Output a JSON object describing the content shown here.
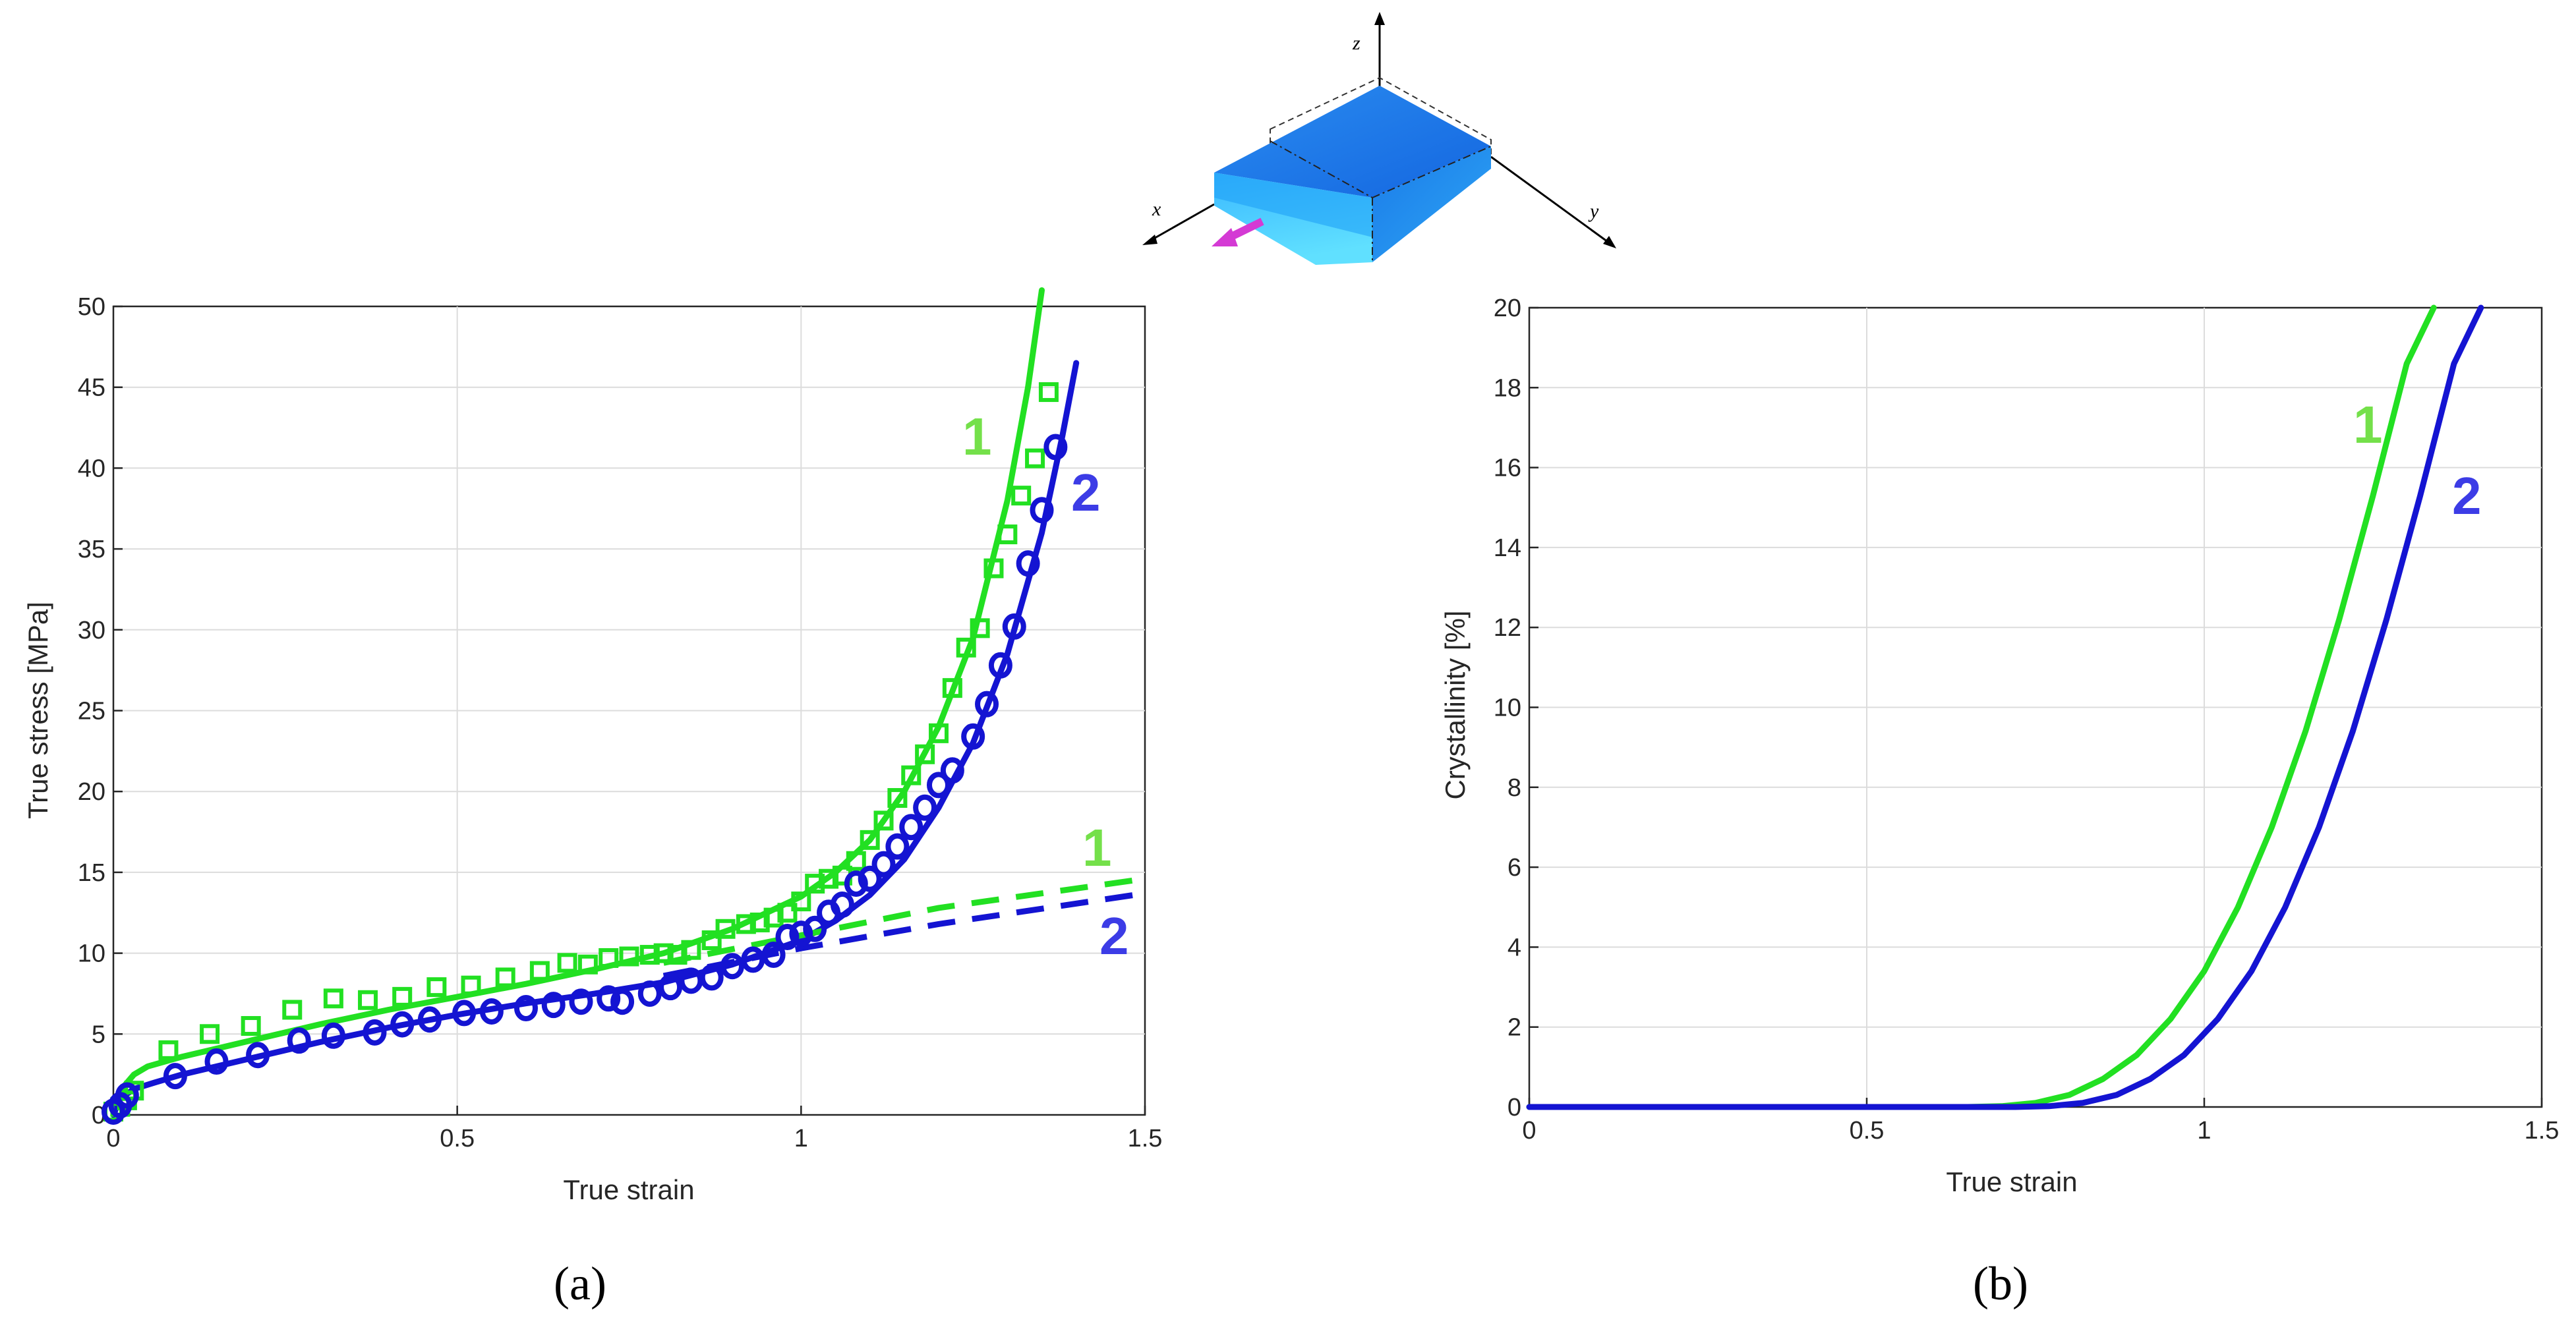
{
  "chart_data": [
    {
      "type": "line",
      "panel_label": "(a)",
      "xlabel": "True strain",
      "ylabel": "True stress [MPa]",
      "xlim": [
        0,
        1.5
      ],
      "ylim": [
        0,
        50
      ],
      "xticks": [
        "0",
        "0.5",
        "1",
        "1.5"
      ],
      "yticks": [
        "0",
        "5",
        "10",
        "15",
        "20",
        "25",
        "30",
        "35",
        "40",
        "45",
        "50"
      ],
      "grid": true,
      "series": [
        {
          "name": "1",
          "color": "#22e022",
          "style": "solid",
          "x": [
            0,
            0.01,
            0.03,
            0.05,
            0.1,
            0.2,
            0.3,
            0.4,
            0.5,
            0.6,
            0.7,
            0.8,
            0.9,
            1.0,
            1.05,
            1.1,
            1.15,
            1.2,
            1.25,
            1.3,
            1.33,
            1.35
          ],
          "y": [
            0,
            1.5,
            2.5,
            3.0,
            3.6,
            4.6,
            5.6,
            6.5,
            7.3,
            8.1,
            9.0,
            10.0,
            11.5,
            13.5,
            15.0,
            17.0,
            20.0,
            24.0,
            29.5,
            38.0,
            45.0,
            51.0
          ]
        },
        {
          "name": "2",
          "color": "#1414d2",
          "style": "solid",
          "x": [
            0,
            0.01,
            0.03,
            0.06,
            0.1,
            0.2,
            0.3,
            0.4,
            0.5,
            0.6,
            0.7,
            0.8,
            0.9,
            1.0,
            1.05,
            1.1,
            1.15,
            1.2,
            1.25,
            1.3,
            1.35,
            1.38,
            1.4
          ],
          "y": [
            0,
            1.0,
            1.6,
            2.0,
            2.5,
            3.5,
            4.5,
            5.4,
            6.2,
            6.9,
            7.5,
            8.2,
            9.3,
            10.8,
            12.0,
            13.6,
            15.8,
            19.0,
            23.0,
            28.5,
            36.0,
            42.0,
            46.5
          ]
        },
        {
          "name": "1",
          "color": "#22e022",
          "style": "dashed",
          "x": [
            0.8,
            1.0,
            1.2,
            1.5
          ],
          "y": [
            9.4,
            11.1,
            12.8,
            14.6
          ]
        },
        {
          "name": "2",
          "color": "#1414d2",
          "style": "dashed",
          "x": [
            0.8,
            1.0,
            1.2,
            1.5
          ],
          "y": [
            8.6,
            10.3,
            11.8,
            13.7
          ]
        }
      ],
      "markers": [
        {
          "name": "1",
          "shape": "square",
          "color": "#22e022",
          "x": [
            0.0,
            0.01,
            0.02,
            0.03,
            0.08,
            0.14,
            0.2,
            0.26,
            0.32,
            0.37,
            0.42,
            0.47,
            0.52,
            0.57,
            0.62,
            0.66,
            0.69,
            0.72,
            0.75,
            0.78,
            0.8,
            0.82,
            0.84,
            0.87,
            0.89,
            0.92,
            0.94,
            0.96,
            0.98,
            1.0,
            1.02,
            1.04,
            1.06,
            1.08,
            1.1,
            1.12,
            1.14,
            1.16,
            1.18,
            1.2,
            1.22,
            1.24,
            1.26,
            1.28,
            1.3,
            1.32,
            1.34,
            1.36
          ],
          "y": [
            0.2,
            0.5,
            0.9,
            1.5,
            4.0,
            5.0,
            5.5,
            6.5,
            7.2,
            7.1,
            7.3,
            7.9,
            8.0,
            8.5,
            8.9,
            9.4,
            9.3,
            9.7,
            9.8,
            9.9,
            10.0,
            9.9,
            10.2,
            10.8,
            11.5,
            11.8,
            11.9,
            12.2,
            12.5,
            13.2,
            14.3,
            14.6,
            14.8,
            15.7,
            17.0,
            18.2,
            19.6,
            21.0,
            22.3,
            23.6,
            26.4,
            28.9,
            30.1,
            33.8,
            35.9,
            38.3,
            40.6,
            44.7
          ]
        },
        {
          "name": "2",
          "shape": "circle",
          "color": "#1414d2",
          "x": [
            0.0,
            0.01,
            0.02,
            0.09,
            0.15,
            0.21,
            0.27,
            0.32,
            0.38,
            0.42,
            0.46,
            0.51,
            0.55,
            0.6,
            0.64,
            0.68,
            0.72,
            0.74,
            0.78,
            0.81,
            0.84,
            0.87,
            0.9,
            0.93,
            0.96,
            0.98,
            1.0,
            1.02,
            1.04,
            1.06,
            1.08,
            1.1,
            1.12,
            1.14,
            1.16,
            1.18,
            1.2,
            1.22,
            1.25,
            1.27,
            1.29,
            1.31,
            1.33,
            1.35,
            1.37
          ],
          "y": [
            0.2,
            0.6,
            1.2,
            2.4,
            3.3,
            3.7,
            4.6,
            4.9,
            5.1,
            5.6,
            5.9,
            6.3,
            6.4,
            6.6,
            6.8,
            7.0,
            7.2,
            7.0,
            7.5,
            7.9,
            8.3,
            8.5,
            9.2,
            9.6,
            9.9,
            11.0,
            11.2,
            11.5,
            12.5,
            13.0,
            14.3,
            14.6,
            15.5,
            16.6,
            17.8,
            19.0,
            20.4,
            21.3,
            23.4,
            25.4,
            27.8,
            30.2,
            34.1,
            37.4,
            41.3
          ]
        }
      ],
      "annotations": [
        {
          "text": "1",
          "color": "#74e04a"
        },
        {
          "text": "2",
          "color": "#3c3ce6"
        },
        {
          "text": "1",
          "color": "#74e04a"
        },
        {
          "text": "2",
          "color": "#3c3ce6"
        }
      ]
    },
    {
      "type": "line",
      "panel_label": "(b)",
      "xlabel": "True strain",
      "ylabel": "Crystallinity [%]",
      "xlim": [
        0,
        1.5
      ],
      "ylim": [
        0,
        20
      ],
      "xticks": [
        "0",
        "0.5",
        "1",
        "1.5"
      ],
      "yticks": [
        "0",
        "2",
        "4",
        "6",
        "8",
        "10",
        "12",
        "14",
        "16",
        "18",
        "20"
      ],
      "grid": true,
      "series": [
        {
          "name": "1",
          "color": "#22e022",
          "style": "solid",
          "x": [
            0,
            0.65,
            0.7,
            0.75,
            0.8,
            0.85,
            0.9,
            0.95,
            1.0,
            1.05,
            1.1,
            1.15,
            1.2,
            1.25,
            1.3,
            1.34
          ],
          "y": [
            0,
            0,
            0.02,
            0.1,
            0.3,
            0.7,
            1.3,
            2.2,
            3.4,
            5.0,
            7.0,
            9.4,
            12.2,
            15.3,
            18.6,
            20.0
          ]
        },
        {
          "name": "2",
          "color": "#1414d2",
          "style": "solid",
          "x": [
            0,
            0.72,
            0.77,
            0.82,
            0.87,
            0.92,
            0.97,
            1.02,
            1.07,
            1.12,
            1.17,
            1.22,
            1.27,
            1.32,
            1.37,
            1.41
          ],
          "y": [
            0,
            0,
            0.02,
            0.1,
            0.3,
            0.7,
            1.3,
            2.2,
            3.4,
            5.0,
            7.0,
            9.4,
            12.2,
            15.3,
            18.6,
            20.0
          ]
        }
      ],
      "annotations": [
        {
          "text": "1",
          "color": "#74e04a"
        },
        {
          "text": "2",
          "color": "#3c3ce6"
        }
      ]
    }
  ],
  "inset": {
    "axes": [
      "x",
      "y",
      "z"
    ]
  }
}
